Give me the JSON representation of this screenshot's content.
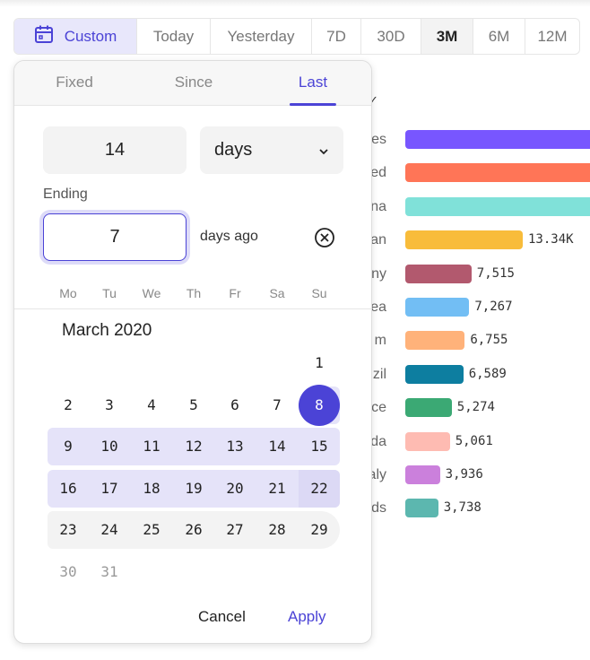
{
  "range_bar": {
    "custom_label": "Custom",
    "custom_icon": "calendar-icon",
    "options": [
      "Today",
      "Yesterday",
      "7D",
      "30D",
      "3M",
      "6M",
      "12M"
    ],
    "selected": "3M"
  },
  "chart_data": {
    "type": "bar",
    "orientation": "horizontal",
    "categories": [
      "es",
      "ed",
      "na",
      "an",
      "ny",
      "ea",
      "m",
      "zil",
      "ce",
      "da",
      "aly",
      "ds"
    ],
    "values": [
      null,
      null,
      null,
      13340,
      7515,
      7267,
      6755,
      6589,
      5274,
      5061,
      3936,
      3738
    ],
    "value_labels": [
      "",
      "",
      "",
      "13.34K",
      "7,515",
      "7,267",
      "6,755",
      "6,589",
      "5,274",
      "5,061",
      "3,936",
      "3,738"
    ],
    "colors": [
      "#7856ff",
      "#ff7557",
      "#80e1d9",
      "#f8bc3b",
      "#b2596e",
      "#72bef4",
      "#ffb27a",
      "#0d7ea0",
      "#3ba974",
      "#febbb2",
      "#cb80dc",
      "#5cb7af"
    ]
  },
  "popover": {
    "tabs": [
      "Fixed",
      "Since",
      "Last"
    ],
    "active_tab": "Last",
    "amount": "14",
    "unit": "days",
    "ending_label": "Ending",
    "ending_value": "7",
    "ending_suffix": "days ago",
    "weekdays": [
      "Mo",
      "Tu",
      "We",
      "Th",
      "Fr",
      "Sa",
      "Su"
    ],
    "month_title": "March 2020",
    "first_weekday_index": 6,
    "days_in_month": 31,
    "selected_day": 8,
    "range_start": 8,
    "range_end": 22,
    "hover_week_start": 23,
    "accent": "#4b43d6",
    "range_color": "#e5e3f9",
    "cancel_label": "Cancel",
    "apply_label": "Apply"
  }
}
